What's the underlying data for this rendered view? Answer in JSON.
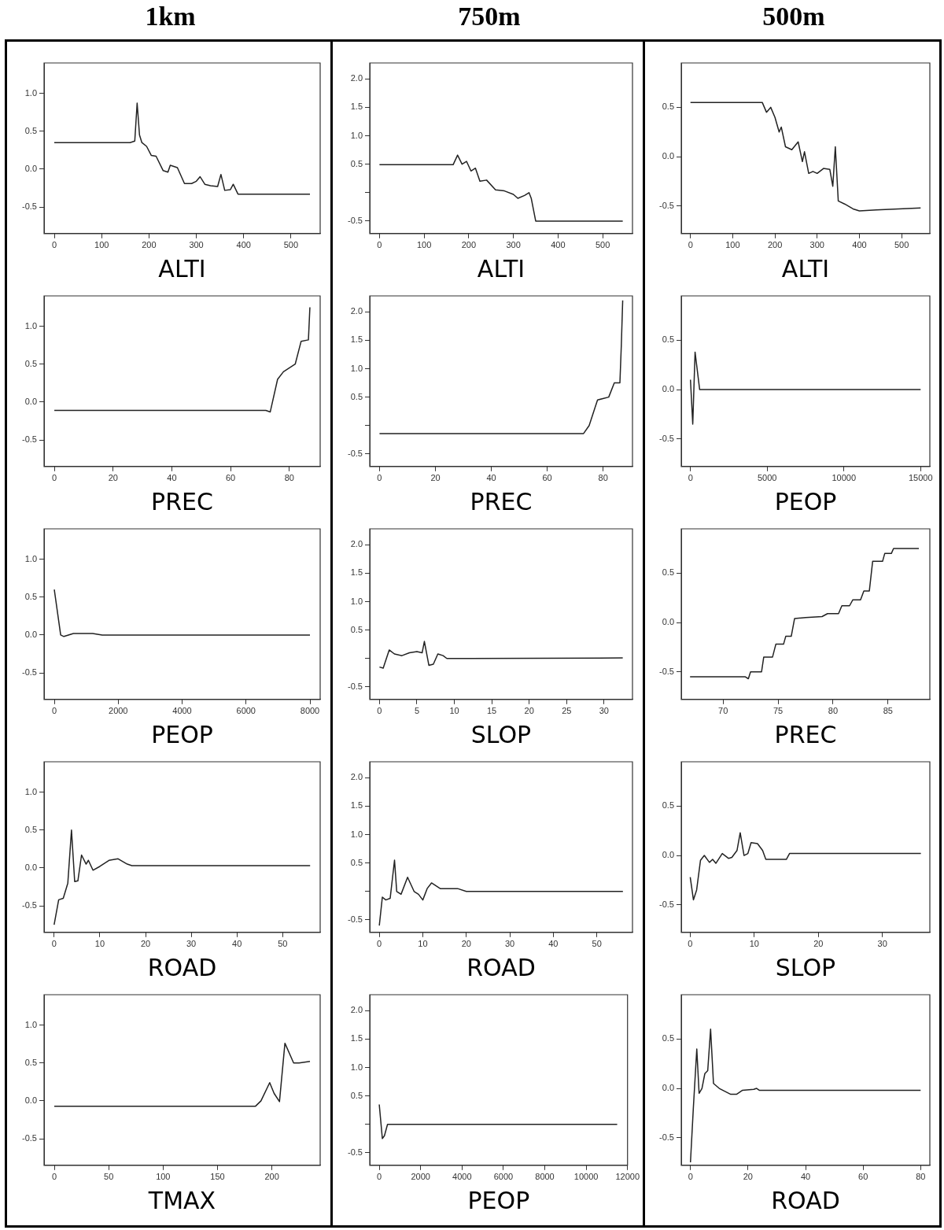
{
  "chart_data": [
    {
      "type": "line",
      "title": "1km",
      "xlabel": "ALTI",
      "color": "#222222",
      "xlim": [
        -21.6,
        561.6
      ],
      "xticks": [
        0,
        100,
        200,
        300,
        400,
        500
      ],
      "ylim": [
        -0.85,
        1.4
      ],
      "yticks": [
        -0.5,
        {
          "value": 0,
          "label": "0.0"
        },
        0.5,
        {
          "value": 1,
          "label": "1.0"
        }
      ],
      "x": [
        0,
        160,
        170,
        175,
        180,
        185,
        195,
        205,
        215,
        230,
        240,
        245,
        260,
        275,
        290,
        300,
        308,
        318,
        330,
        345,
        352,
        360,
        372,
        378,
        388,
        540
      ],
      "values": [
        0.35,
        0.35,
        0.37,
        0.87,
        0.45,
        0.35,
        0.3,
        0.18,
        0.17,
        -0.02,
        -0.04,
        0.05,
        0.02,
        -0.19,
        -0.19,
        -0.16,
        -0.1,
        -0.2,
        -0.22,
        -0.23,
        -0.07,
        -0.28,
        -0.27,
        -0.2,
        -0.33,
        -0.33
      ]
    },
    {
      "type": "line",
      "title": "750m",
      "xlabel": "ALTI",
      "color": "#222222",
      "xlim": [
        -21.8,
        566.8
      ],
      "xticks": [
        0,
        100,
        200,
        300,
        400,
        500
      ],
      "ylim": [
        -0.72,
        2.28
      ],
      "yticks": [
        -0.5,
        {
          "value": 0,
          "label": null
        },
        0.5,
        {
          "value": 1,
          "label": "1.0"
        },
        1.5,
        {
          "value": 2,
          "label": "2.0"
        }
      ],
      "x": [
        0,
        165,
        175,
        185,
        195,
        205,
        215,
        225,
        240,
        260,
        280,
        300,
        310,
        325,
        335,
        340,
        350,
        545
      ],
      "values": [
        0.49,
        0.49,
        0.66,
        0.5,
        0.55,
        0.38,
        0.43,
        0.2,
        0.22,
        0.05,
        0.03,
        -0.03,
        -0.1,
        -0.05,
        0,
        -0.1,
        -0.5,
        -0.5
      ]
    },
    {
      "type": "line",
      "title": "500m",
      "xlabel": "ALTI",
      "color": "#222222",
      "xlim": [
        -21.8,
        566.8
      ],
      "xticks": [
        0,
        100,
        200,
        300,
        400,
        500
      ],
      "ylim": [
        -0.78,
        0.95
      ],
      "yticks": [
        -0.5,
        {
          "value": 0,
          "label": "0.0"
        },
        0.5
      ],
      "x": [
        0,
        170,
        180,
        190,
        200,
        210,
        215,
        225,
        240,
        255,
        265,
        270,
        280,
        290,
        300,
        315,
        330,
        337,
        343,
        350,
        365,
        385,
        400,
        440,
        545
      ],
      "values": [
        0.55,
        0.55,
        0.45,
        0.5,
        0.4,
        0.25,
        0.3,
        0.1,
        0.07,
        0.15,
        -0.05,
        0.05,
        -0.17,
        -0.15,
        -0.17,
        -0.12,
        -0.13,
        -0.3,
        0.1,
        -0.45,
        -0.48,
        -0.53,
        -0.55,
        -0.54,
        -0.52
      ]
    },
    {
      "type": "line",
      "xlabel": "PREC",
      "color": "#222222",
      "xlim": [
        -3.5,
        90.5
      ],
      "xticks": [
        0,
        20,
        40,
        60,
        80
      ],
      "ylim": [
        -0.85,
        1.4
      ],
      "yticks": [
        -0.5,
        {
          "value": 0,
          "label": "0.0"
        },
        0.5,
        {
          "value": 1,
          "label": "1.0"
        }
      ],
      "x": [
        0,
        72,
        73.5,
        76,
        78,
        82,
        84,
        86.5,
        87
      ],
      "values": [
        -0.11,
        -0.11,
        -0.13,
        0.3,
        0.4,
        0.5,
        0.8,
        0.82,
        1.25
      ]
    },
    {
      "type": "line",
      "xlabel": "PREC",
      "color": "#222222",
      "xlim": [
        -3.5,
        90.5
      ],
      "xticks": [
        0,
        20,
        40,
        60,
        80
      ],
      "ylim": [
        -0.72,
        2.28
      ],
      "yticks": [
        -0.5,
        {
          "value": 0,
          "label": null
        },
        0.5,
        {
          "value": 1,
          "label": "1.0"
        },
        1.5,
        {
          "value": 2,
          "label": "2.0"
        }
      ],
      "x": [
        0,
        73,
        75,
        77,
        78,
        82,
        84,
        86,
        86.5,
        87
      ],
      "values": [
        -0.14,
        -0.14,
        0,
        0.3,
        0.45,
        0.5,
        0.75,
        0.75,
        1.4,
        2.2
      ]
    },
    {
      "type": "line",
      "xlabel": "PEOP",
      "color": "#222222",
      "xlim": [
        -600,
        15600
      ],
      "xticks": [
        0,
        5000,
        10000,
        15000
      ],
      "ylim": [
        -0.78,
        0.95
      ],
      "yticks": [
        -0.5,
        {
          "value": 0,
          "label": "0.0"
        },
        0.5
      ],
      "x": [
        0,
        150,
        300,
        600,
        15000
      ],
      "values": [
        0.1,
        -0.35,
        0.38,
        0,
        0
      ]
    },
    {
      "type": "line",
      "xlabel": "PEOP",
      "color": "#222222",
      "xlim": [
        -320,
        8320
      ],
      "xticks": [
        0,
        2000,
        4000,
        6000,
        8000
      ],
      "ylim": [
        -0.85,
        1.4
      ],
      "yticks": [
        -0.5,
        {
          "value": 0,
          "label": "0.0"
        },
        0.5,
        {
          "value": 1,
          "label": "1.0"
        }
      ],
      "x": [
        0,
        200,
        300,
        600,
        1200,
        1500,
        8000
      ],
      "values": [
        0.6,
        0,
        -0.02,
        0.02,
        0.02,
        0,
        0
      ]
    },
    {
      "type": "line",
      "xlabel": "SLOP",
      "color": "#222222",
      "xlim": [
        -1.3,
        33.8
      ],
      "xticks": [
        0,
        5,
        10,
        15,
        20,
        25,
        30
      ],
      "ylim": [
        -0.72,
        2.28
      ],
      "yticks": [
        -0.5,
        {
          "value": 0,
          "label": null
        },
        0.5,
        {
          "value": 1,
          "label": "1.0"
        },
        1.5,
        {
          "value": 2,
          "label": "2.0"
        }
      ],
      "x": [
        0,
        0.5,
        1.3,
        2,
        3,
        4,
        5,
        5.7,
        6,
        6.6,
        7.2,
        7.8,
        8.5,
        9,
        12,
        32.5
      ],
      "values": [
        -0.15,
        -0.17,
        0.15,
        0.08,
        0.05,
        0.1,
        0.12,
        0.1,
        0.3,
        -0.12,
        -0.1,
        0.08,
        0.05,
        0,
        0,
        0.01
      ]
    },
    {
      "type": "line",
      "xlabel": "PREC",
      "color": "#222222",
      "xlim": [
        66.2,
        88.8
      ],
      "xticks": [
        70,
        75,
        80,
        85
      ],
      "ylim": [
        -0.78,
        0.95
      ],
      "yticks": [
        -0.5,
        {
          "value": 0,
          "label": "0.0"
        },
        0.5
      ],
      "x": [
        67,
        72,
        72.3,
        72.5,
        73.5,
        73.7,
        74.5,
        74.8,
        75.5,
        75.7,
        76.2,
        76.5,
        77.5,
        79,
        79.5,
        80.5,
        80.8,
        81.5,
        81.8,
        82.5,
        82.8,
        83.3,
        83.6,
        84.5,
        84.7,
        85.3,
        85.5,
        87.8
      ],
      "values": [
        -0.55,
        -0.55,
        -0.57,
        -0.5,
        -0.5,
        -0.35,
        -0.35,
        -0.22,
        -0.22,
        -0.14,
        -0.14,
        0.04,
        0.05,
        0.06,
        0.09,
        0.09,
        0.17,
        0.17,
        0.23,
        0.23,
        0.32,
        0.32,
        0.62,
        0.62,
        0.7,
        0.7,
        0.75,
        0.75
      ]
    },
    {
      "type": "line",
      "xlabel": "ROAD",
      "color": "#222222",
      "xlim": [
        -2.2,
        58.2
      ],
      "xticks": [
        0,
        10,
        20,
        30,
        40,
        50
      ],
      "ylim": [
        -0.85,
        1.4
      ],
      "yticks": [
        -0.5,
        {
          "value": 0,
          "label": "0.0"
        },
        0.5,
        {
          "value": 1,
          "label": "1.0"
        }
      ],
      "x": [
        0,
        1,
        2,
        3,
        3.8,
        4.5,
        5.2,
        6,
        7,
        7.5,
        8.5,
        10,
        12,
        14,
        16,
        17,
        56
      ],
      "values": [
        -0.75,
        -0.42,
        -0.4,
        -0.2,
        0.5,
        -0.18,
        -0.17,
        0.17,
        0.05,
        0.1,
        -0.03,
        0.02,
        0.1,
        0.12,
        0.05,
        0.03,
        0.03
      ]
    },
    {
      "type": "line",
      "xlabel": "ROAD",
      "color": "#222222",
      "xlim": [
        -2.2,
        58.2
      ],
      "xticks": [
        0,
        10,
        20,
        30,
        40,
        50
      ],
      "ylim": [
        -0.72,
        2.28
      ],
      "yticks": [
        -0.5,
        {
          "value": 0,
          "label": null
        },
        0.5,
        {
          "value": 1,
          "label": "1.0"
        },
        1.5,
        {
          "value": 2,
          "label": "2.0"
        }
      ],
      "x": [
        0,
        0.7,
        1.5,
        2.5,
        3.5,
        4,
        5,
        6.5,
        8,
        9,
        10,
        11,
        12,
        14,
        18,
        20,
        56
      ],
      "values": [
        -0.6,
        -0.1,
        -0.15,
        -0.12,
        0.55,
        0,
        -0.05,
        0.25,
        0,
        -0.05,
        -0.15,
        0.05,
        0.15,
        0.05,
        0.05,
        0,
        0
      ]
    },
    {
      "type": "line",
      "xlabel": "SLOP",
      "color": "#222222",
      "xlim": [
        -1.4,
        37.4
      ],
      "xticks": [
        0,
        10,
        20,
        30
      ],
      "ylim": [
        -0.78,
        0.95
      ],
      "yticks": [
        -0.5,
        {
          "value": 0,
          "label": "0.0"
        },
        0.5
      ],
      "x": [
        0,
        0.5,
        1,
        1.6,
        2.2,
        3,
        3.5,
        4,
        5,
        6,
        6.5,
        7.3,
        7.8,
        8.4,
        9,
        9.5,
        10.5,
        11.3,
        11.8,
        15,
        15.5,
        36
      ],
      "values": [
        -0.22,
        -0.45,
        -0.35,
        -0.05,
        0,
        -0.07,
        -0.04,
        -0.08,
        0.02,
        -0.03,
        -0.02,
        0.05,
        0.23,
        0,
        0.02,
        0.13,
        0.12,
        0.05,
        -0.04,
        -0.04,
        0.02,
        0.02
      ]
    },
    {
      "type": "line",
      "xlabel": "TMAX",
      "color": "#222222",
      "xlim": [
        -9.4,
        244.4
      ],
      "xticks": [
        0,
        50,
        100,
        150,
        200
      ],
      "ylim": [
        -0.85,
        1.4
      ],
      "yticks": [
        -0.5,
        {
          "value": 0,
          "label": "0.0"
        },
        0.5,
        {
          "value": 1,
          "label": "1.0"
        }
      ],
      "x": [
        0,
        185,
        190,
        198,
        202,
        207,
        212,
        220,
        225,
        235
      ],
      "values": [
        -0.07,
        -0.07,
        0,
        0.24,
        0.1,
        -0.01,
        0.76,
        0.5,
        0.5,
        0.52
      ]
    },
    {
      "type": "line",
      "xlabel": "PEOP",
      "color": "#222222",
      "xlim": [
        -460,
        12000
      ],
      "xticks": [
        0,
        2000,
        4000,
        6000,
        8000,
        10000,
        12000
      ],
      "ylim": [
        -0.72,
        2.28
      ],
      "yticks": [
        -0.5,
        {
          "value": 0,
          "label": null
        },
        0.5,
        {
          "value": 1,
          "label": "1.0"
        },
        1.5,
        {
          "value": 2,
          "label": "2.0"
        }
      ],
      "x": [
        0,
        150,
        250,
        400,
        11500
      ],
      "values": [
        0.35,
        -0.25,
        -0.2,
        0,
        0
      ]
    },
    {
      "type": "line",
      "xlabel": "ROAD",
      "color": "#222222",
      "xlim": [
        -3.2,
        83.2
      ],
      "xticks": [
        0,
        20,
        40,
        60,
        80
      ],
      "ylim": [
        -0.78,
        0.95
      ],
      "yticks": [
        -0.5,
        {
          "value": 0,
          "label": "0.0"
        },
        0.5
      ],
      "x": [
        0,
        1,
        2.2,
        3,
        4,
        5,
        6,
        7,
        8,
        10,
        12,
        14,
        16,
        18,
        22,
        23,
        24,
        80
      ],
      "values": [
        -0.75,
        -0.2,
        0.4,
        -0.05,
        0,
        0.15,
        0.18,
        0.6,
        0.05,
        0,
        -0.03,
        -0.06,
        -0.06,
        -0.02,
        -0.01,
        0,
        -0.02,
        -0.02
      ]
    }
  ]
}
